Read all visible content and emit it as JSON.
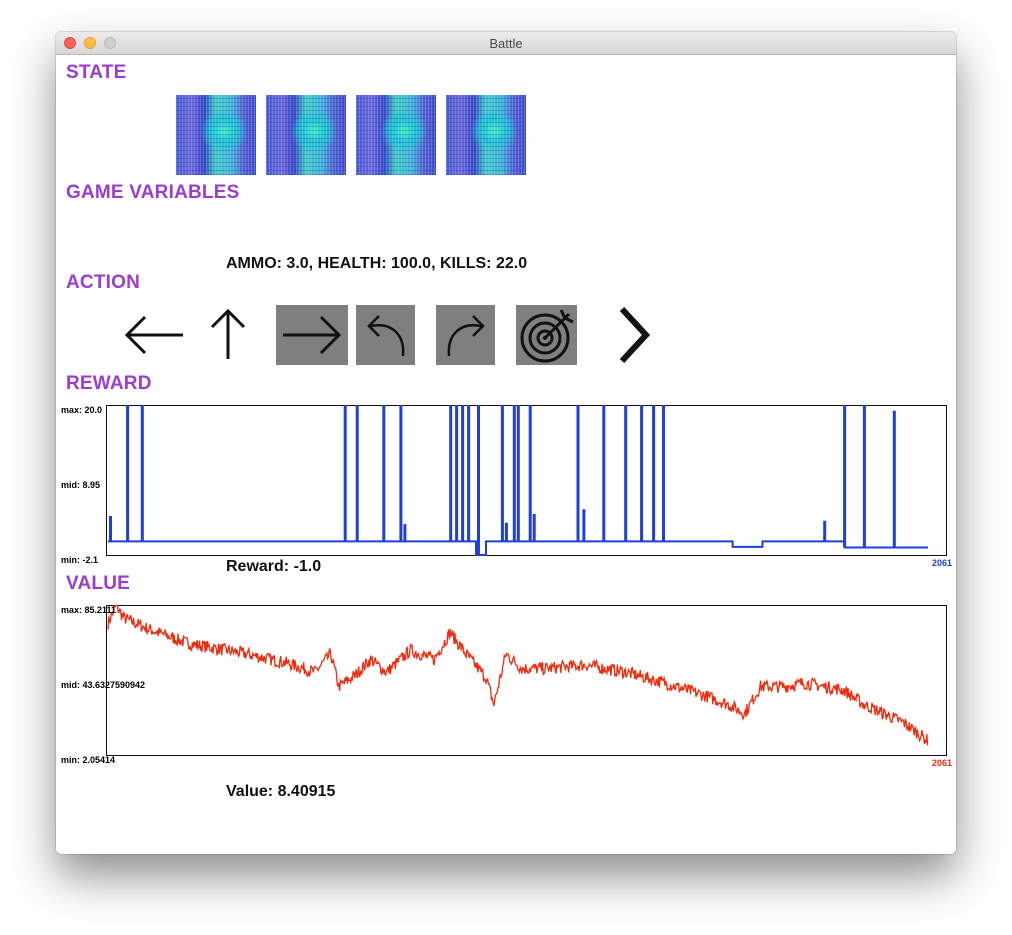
{
  "window": {
    "title": "Battle"
  },
  "sections": {
    "state": "STATE",
    "game_variables": "GAME VARIABLES",
    "action": "ACTION",
    "reward": "REWARD",
    "value": "VALUE"
  },
  "game_variables_text": "AMMO: 3.0, HEALTH: 100.0, KILLS: 22.0",
  "actions": [
    {
      "icon": "arrow-left-icon",
      "active": false
    },
    {
      "icon": "arrow-up-icon",
      "active": false
    },
    {
      "icon": "arrow-right-icon",
      "active": true
    },
    {
      "icon": "turn-left-icon",
      "active": true
    },
    {
      "icon": "turn-right-icon",
      "active": true
    },
    {
      "icon": "target-icon",
      "active": true
    },
    {
      "icon": "chevron-right-icon",
      "active": false
    }
  ],
  "reward": {
    "max_label": "max: 20.0",
    "mid_label": "mid: 8.95",
    "min_label": "min: -2.1",
    "count_label": "2061",
    "readout": "Reward: -1.0"
  },
  "value": {
    "max_label": "max: 85.2111",
    "mid_label": "mid: 43.6327590942",
    "min_label": "min: 2.05414",
    "count_label": "2061",
    "readout": "Value: 8.40915"
  },
  "colors": {
    "section": "#9b3dd0",
    "reward_line": "#1f3fd6",
    "value_line": "#f02a0c",
    "active_action": "#7f7f7f"
  },
  "chart_data": [
    {
      "type": "line",
      "title": "REWARD",
      "ylim": [
        -2.1,
        20.0
      ],
      "xlim": [
        0,
        2061
      ],
      "series": [
        {
          "values_description_free": true,
          "baseline": -0.1,
          "spikes": [
            {
              "x": 5,
              "y": 3.5
            },
            {
              "x": 48,
              "y": 20.0
            },
            {
              "x": 85,
              "y": 20.0
            },
            {
              "x": 595,
              "y": 20.0
            },
            {
              "x": 625,
              "y": 20.0
            },
            {
              "x": 692,
              "y": 20.0
            },
            {
              "x": 735,
              "y": 20.0
            },
            {
              "x": 745,
              "y": 2.3
            },
            {
              "x": 860,
              "y": 20.0
            },
            {
              "x": 875,
              "y": 20.0
            },
            {
              "x": 890,
              "y": 20.0
            },
            {
              "x": 905,
              "y": 20.0
            },
            {
              "x": 930,
              "y": 20.0
            },
            {
              "x": 990,
              "y": 20.0
            },
            {
              "x": 1000,
              "y": 2.5
            },
            {
              "x": 1020,
              "y": 20.0
            },
            {
              "x": 1030,
              "y": 20.0
            },
            {
              "x": 1060,
              "y": 20.0
            },
            {
              "x": 1070,
              "y": 3.8
            },
            {
              "x": 1180,
              "y": 20.0
            },
            {
              "x": 1195,
              "y": 4.5
            },
            {
              "x": 1245,
              "y": 20.0
            },
            {
              "x": 1300,
              "y": 20.0
            },
            {
              "x": 1340,
              "y": 20.0
            },
            {
              "x": 1370,
              "y": 20.0
            },
            {
              "x": 1395,
              "y": 20.0
            },
            {
              "x": 1800,
              "y": 2.8
            },
            {
              "x": 1850,
              "y": 20.0
            },
            {
              "x": 1900,
              "y": 20.0
            },
            {
              "x": 1975,
              "y": 19.0
            }
          ],
          "segments": [
            {
              "from": 0,
              "to": 925,
              "y": -0.1
            },
            {
              "from": 925,
              "to": 950,
              "y": -2.1
            },
            {
              "from": 950,
              "to": 1570,
              "y": -0.1
            },
            {
              "from": 1570,
              "to": 1645,
              "y": -0.9
            },
            {
              "from": 1645,
              "to": 1850,
              "y": -0.1
            },
            {
              "from": 1850,
              "to": 2061,
              "y": -1.0
            }
          ]
        }
      ]
    },
    {
      "type": "line",
      "title": "VALUE",
      "ylim": [
        2.05414,
        85.2111
      ],
      "xlim": [
        0,
        2061
      ],
      "series": [
        {
          "anchors": [
            [
              0,
              75
            ],
            [
              20,
              85
            ],
            [
              40,
              78
            ],
            [
              100,
              72
            ],
            [
              200,
              64
            ],
            [
              350,
              58
            ],
            [
              450,
              53
            ],
            [
              520,
              48
            ],
            [
              560,
              58
            ],
            [
              580,
              40
            ],
            [
              620,
              46
            ],
            [
              660,
              55
            ],
            [
              700,
              48
            ],
            [
              760,
              60
            ],
            [
              820,
              55
            ],
            [
              860,
              70
            ],
            [
              900,
              58
            ],
            [
              950,
              45
            ],
            [
              970,
              30
            ],
            [
              1000,
              58
            ],
            [
              1040,
              50
            ],
            [
              1100,
              50
            ],
            [
              1200,
              52
            ],
            [
              1300,
              48
            ],
            [
              1400,
              42
            ],
            [
              1500,
              35
            ],
            [
              1560,
              30
            ],
            [
              1600,
              25
            ],
            [
              1640,
              40
            ],
            [
              1700,
              40
            ],
            [
              1750,
              42
            ],
            [
              1800,
              40
            ],
            [
              1850,
              38
            ],
            [
              1900,
              30
            ],
            [
              1950,
              25
            ],
            [
              2000,
              20
            ],
            [
              2061,
              10
            ]
          ]
        }
      ]
    }
  ]
}
